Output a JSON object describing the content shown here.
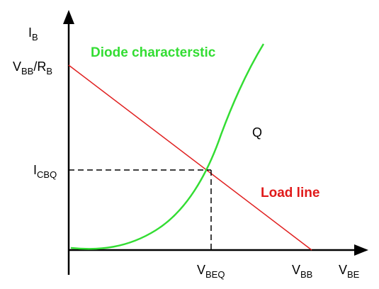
{
  "colors": {
    "axis": "#000000",
    "load_line": "#e02020",
    "diode_curve": "#33dd33",
    "load_label": "#e01a1a",
    "diode_label": "#33dd33",
    "text": "#000000"
  },
  "axes": {
    "y_label": {
      "main": "I",
      "sub": "B"
    },
    "x_label": {
      "main": "V",
      "sub": "BE"
    }
  },
  "labels": {
    "y_intercept": {
      "main1": "V",
      "sub1": "BB",
      "mid": "/R",
      "sub2": "B"
    },
    "icbq": {
      "main": "I",
      "sub": "CBQ"
    },
    "vbeq": {
      "main": "V",
      "sub": "BEQ"
    },
    "vbb": {
      "main": "V",
      "sub": "BB"
    },
    "q_point": "Q",
    "diode_characteristic": "Diode characterstic",
    "load_line": "Load line"
  }
}
